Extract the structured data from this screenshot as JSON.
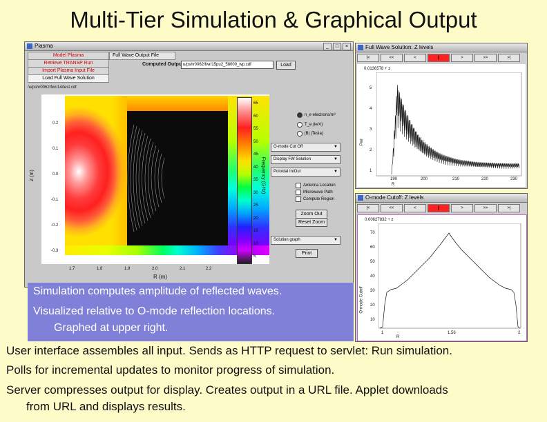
{
  "slide": {
    "title": "Multi-Tier Simulation & Graphical Output",
    "caption_lines": [
      "Simulation computes amplitude of reflected waves.",
      "Visualized relative to O-mode reflection locations.",
      "Graphed at upper right."
    ],
    "bullets": [
      "User interface assembles all input.  Sends as HTTP request to servlet: Run simulation.",
      "Polls for incremental updates to monitor progress of simulation.",
      "Server compresses output for display.  Creates output in a URL file. Applet downloads",
      "from URL and displays results."
    ]
  },
  "plasma_window": {
    "title": "Plasma",
    "side_tabs": [
      "Model Plasma",
      "Retrieve TRANSP Run",
      "Import Plasma Input File",
      "Load Full Wave Solution"
    ],
    "active_tab": "Full Wave Output File",
    "computed_output_label": "Computed Output",
    "computed_output_value": "u/pshr0062/fwr/15pu2_58000_wp.cdf",
    "load_button": "Load",
    "path": "/u/pshr0062/fwr/14/test.cdf",
    "radios": [
      "n_e  electrons/m³",
      "T_e  (keV)",
      "|B|  (Tesla)"
    ],
    "selects": [
      "O-mode Cut Off",
      "Display FW Solution",
      "Poloidal In/Out",
      "Solution graph"
    ],
    "checkboxes": [
      "Antenna Location",
      "Microwave Path",
      "Compute Region"
    ],
    "buttons": [
      "Zoom Out",
      "Reset Zoom",
      "Print"
    ],
    "plot": {
      "ylabel": "Z (m)",
      "xlabel": "R (m)",
      "y_ticks": [
        "0.2",
        "0.1",
        "0.0",
        "-0.1",
        "-0.2",
        "-0.3"
      ],
      "x_ticks": [
        "1.7",
        "1.8",
        "1.9",
        "2.0",
        "2.1",
        "2.2"
      ],
      "colorbar_label": "Frequency (GHz)",
      "colorbar_ticks": [
        "65",
        "60",
        "55",
        "50",
        "45",
        "40",
        "35",
        "30",
        "25",
        "20",
        "15",
        "10",
        "5"
      ]
    }
  },
  "fw_window": {
    "title": "Full Wave Solution: Z levels",
    "nav": [
      "|<",
      "<<",
      "<",
      "||",
      ">",
      ">>",
      ">|"
    ],
    "readout": "0.0136578 + z",
    "ylabel": "Pwr",
    "y_ticks": [
      "5",
      "4",
      "3",
      "2",
      "1",
      "0"
    ],
    "x_ticks": [
      "190",
      "200",
      "210",
      "220",
      "230"
    ],
    "xlabel": "R"
  },
  "omode_window": {
    "title": "O-mode Cutoff: Z levels",
    "nav": [
      "|<",
      "<<",
      "<",
      "||",
      ">",
      ">>",
      ">|"
    ],
    "readout": "0.00627832 + z",
    "ylabel": "O-mode Cutoff",
    "y_ticks": [
      "70",
      "60",
      "50",
      "40",
      "30",
      "20",
      "10",
      "0"
    ],
    "x_ticks": [
      "1",
      "1.56",
      "2"
    ],
    "xlabel": "R"
  }
}
